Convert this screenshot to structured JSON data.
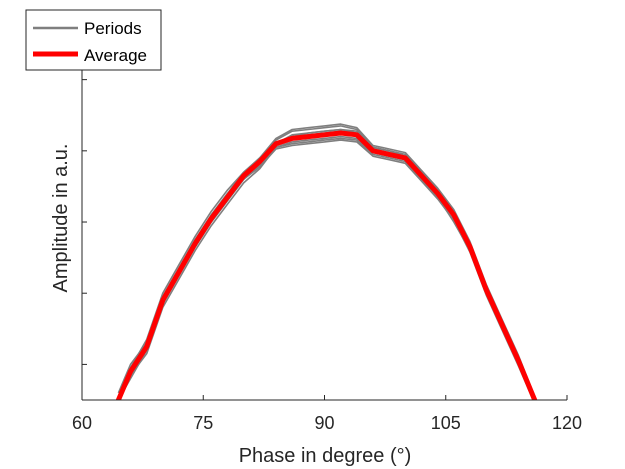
{
  "chart_data": {
    "type": "line",
    "title": "",
    "xlabel": "Phase in degree (°)",
    "ylabel": "Amplitude in a.u.",
    "xlim": [
      60,
      120
    ],
    "ylim": [
      0,
      1.09
    ],
    "xticks": [
      60,
      75,
      90,
      105,
      120
    ],
    "yticks": [
      0.1,
      0.3,
      0.5,
      0.7,
      0.9
    ],
    "grid": false,
    "legend": {
      "location": "top-left",
      "entries": [
        {
          "label": "Periods",
          "color": "#7f7f7f"
        },
        {
          "label": "Average",
          "color": "#ff0000"
        }
      ]
    },
    "average": {
      "name": "Average",
      "color": "#ff0000",
      "x": [
        64.5,
        66,
        68,
        70,
        72,
        74,
        76,
        78,
        80,
        82,
        84,
        86,
        88,
        90,
        92,
        94,
        96,
        98,
        100,
        102,
        104,
        106,
        108,
        110,
        112,
        114,
        116
      ],
      "y": [
        0.0,
        0.08,
        0.15,
        0.28,
        0.36,
        0.44,
        0.51,
        0.57,
        0.63,
        0.67,
        0.72,
        0.735,
        0.74,
        0.745,
        0.75,
        0.745,
        0.7,
        0.69,
        0.68,
        0.63,
        0.58,
        0.52,
        0.43,
        0.31,
        0.21,
        0.11,
        0.0
      ]
    },
    "periods": [
      {
        "name": "Periods",
        "color": "#7f7f7f",
        "y": [
          0.01,
          0.09,
          0.17,
          0.3,
          0.38,
          0.46,
          0.53,
          0.59,
          0.64,
          0.68,
          0.73,
          0.755,
          0.76,
          0.765,
          0.77,
          0.76,
          0.71,
          0.7,
          0.69,
          0.64,
          0.59,
          0.53,
          0.44,
          0.32,
          0.22,
          0.12,
          0.01
        ]
      },
      {
        "name": "Periods",
        "color": "#7f7f7f",
        "y": [
          -0.01,
          0.07,
          0.13,
          0.26,
          0.34,
          0.42,
          0.49,
          0.55,
          0.61,
          0.65,
          0.71,
          0.72,
          0.725,
          0.73,
          0.735,
          0.73,
          0.69,
          0.68,
          0.67,
          0.62,
          0.57,
          0.5,
          0.42,
          0.3,
          0.2,
          0.1,
          -0.01
        ]
      },
      {
        "name": "Periods",
        "color": "#7f7f7f",
        "y": [
          0.02,
          0.1,
          0.16,
          0.29,
          0.37,
          0.45,
          0.52,
          0.58,
          0.62,
          0.66,
          0.72,
          0.74,
          0.75,
          0.755,
          0.76,
          0.755,
          0.71,
          0.7,
          0.685,
          0.635,
          0.585,
          0.525,
          0.435,
          0.315,
          0.215,
          0.115,
          0.0
        ]
      },
      {
        "name": "Periods",
        "color": "#7f7f7f",
        "y": [
          0.0,
          0.06,
          0.14,
          0.27,
          0.35,
          0.43,
          0.5,
          0.56,
          0.62,
          0.66,
          0.71,
          0.725,
          0.73,
          0.735,
          0.74,
          0.735,
          0.695,
          0.685,
          0.675,
          0.625,
          0.575,
          0.515,
          0.425,
          0.305,
          0.205,
          0.105,
          0.0
        ]
      },
      {
        "name": "Periods",
        "color": "#7f7f7f",
        "y": [
          0.01,
          0.09,
          0.16,
          0.29,
          0.37,
          0.45,
          0.52,
          0.58,
          0.64,
          0.68,
          0.735,
          0.76,
          0.765,
          0.77,
          0.775,
          0.765,
          0.715,
          0.705,
          0.695,
          0.645,
          0.595,
          0.535,
          0.445,
          0.325,
          0.225,
          0.125,
          0.01
        ]
      },
      {
        "name": "Periods",
        "color": "#7f7f7f",
        "y": [
          -0.01,
          0.07,
          0.14,
          0.27,
          0.35,
          0.43,
          0.5,
          0.56,
          0.62,
          0.655,
          0.705,
          0.715,
          0.72,
          0.725,
          0.73,
          0.725,
          0.685,
          0.675,
          0.665,
          0.615,
          0.565,
          0.505,
          0.415,
          0.295,
          0.195,
          0.095,
          -0.01
        ]
      },
      {
        "name": "Periods",
        "color": "#7f7f7f",
        "y": [
          0.0,
          0.08,
          0.15,
          0.28,
          0.36,
          0.44,
          0.51,
          0.57,
          0.63,
          0.67,
          0.72,
          0.745,
          0.75,
          0.755,
          0.76,
          0.75,
          0.7,
          0.69,
          0.68,
          0.63,
          0.58,
          0.52,
          0.43,
          0.31,
          0.21,
          0.11,
          0.0
        ]
      },
      {
        "name": "Periods",
        "color": "#7f7f7f",
        "y": [
          0.01,
          0.08,
          0.15,
          0.28,
          0.36,
          0.44,
          0.51,
          0.57,
          0.63,
          0.67,
          0.72,
          0.74,
          0.745,
          0.75,
          0.755,
          0.745,
          0.705,
          0.695,
          0.685,
          0.635,
          0.585,
          0.525,
          0.435,
          0.315,
          0.215,
          0.115,
          0.01
        ]
      }
    ]
  }
}
